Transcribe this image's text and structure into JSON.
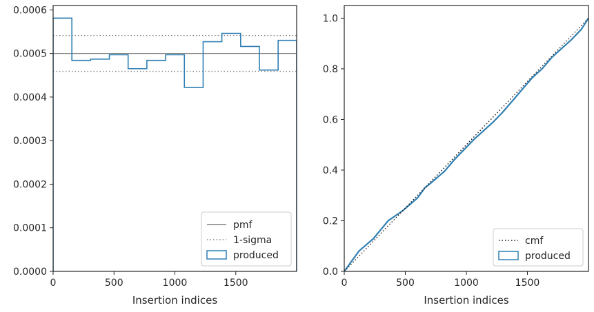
{
  "chart_data": [
    {
      "type": "step",
      "xlabel": "Insertion indices",
      "ylabel": "",
      "xlim": [
        0,
        2000
      ],
      "ylim": [
        0,
        0.00061
      ],
      "x_ticks": [
        0,
        500,
        1000,
        1500
      ],
      "x_tick_labels": [
        "0",
        "500",
        "1000",
        "1500"
      ],
      "y_ticks": [
        0,
        0.0001,
        0.0002,
        0.0003,
        0.0004,
        0.0005,
        0.0006
      ],
      "y_tick_labels": [
        "0.0000",
        "0.0001",
        "0.0002",
        "0.0003",
        "0.0004",
        "0.0005",
        "0.0006"
      ],
      "hlines": [
        {
          "name": "pmf",
          "y": 0.0005,
          "style": "solid",
          "color": "#808080"
        },
        {
          "name": "1-sigma",
          "y": 0.000459,
          "style": "dotted",
          "color": "#808080"
        },
        {
          "name": "1-sigma-upper",
          "y": 0.000541,
          "style": "dotted",
          "color": "#808080"
        }
      ],
      "bin_edges": [
        0,
        154,
        308,
        462,
        616,
        770,
        924,
        1078,
        1232,
        1386,
        1540,
        1694,
        1848,
        2000
      ],
      "series": [
        {
          "name": "produced",
          "color": "#2f7fb3",
          "values": [
            0.000581,
            0.000484,
            0.000487,
            0.000497,
            0.000465,
            0.000484,
            0.000497,
            0.000422,
            0.000527,
            0.000546,
            0.000516,
            0.000462,
            0.00053
          ]
        }
      ],
      "legend": {
        "placement": "lower-right",
        "entries": [
          "pmf",
          "1-sigma",
          "produced"
        ]
      }
    },
    {
      "type": "line",
      "xlabel": "Insertion indices",
      "ylabel": "",
      "xlim": [
        0,
        2000
      ],
      "ylim": [
        0,
        1.05
      ],
      "x_ticks": [
        0,
        500,
        1000,
        1500
      ],
      "x_tick_labels": [
        "0",
        "500",
        "1000",
        "1500"
      ],
      "y_ticks": [
        0,
        0.2,
        0.4,
        0.6,
        0.8,
        1.0
      ],
      "y_tick_labels": [
        "0.0",
        "0.2",
        "0.4",
        "0.6",
        "0.8",
        "1.0"
      ],
      "series": [
        {
          "name": "cmf",
          "style": "dotted",
          "color": "#111111",
          "x": [
            0,
            2000
          ],
          "y": [
            0,
            1.0
          ]
        },
        {
          "name": "produced",
          "style": "solid",
          "color": "#2f7fb3",
          "x": [
            0,
            60,
            120,
            180,
            240,
            300,
            360,
            420,
            480,
            540,
            600,
            660,
            700,
            760,
            820,
            900,
            980,
            1060,
            1140,
            1220,
            1300,
            1380,
            1460,
            1540,
            1620,
            1700,
            1780,
            1860,
            1940,
            2000
          ],
          "y": [
            0,
            0.04,
            0.08,
            0.105,
            0.13,
            0.165,
            0.2,
            0.22,
            0.24,
            0.265,
            0.29,
            0.33,
            0.345,
            0.37,
            0.395,
            0.44,
            0.48,
            0.52,
            0.555,
            0.59,
            0.63,
            0.675,
            0.72,
            0.765,
            0.8,
            0.845,
            0.88,
            0.915,
            0.955,
            1.0
          ]
        }
      ],
      "legend": {
        "placement": "lower-right",
        "entries": [
          "cmf",
          "produced"
        ]
      }
    }
  ]
}
